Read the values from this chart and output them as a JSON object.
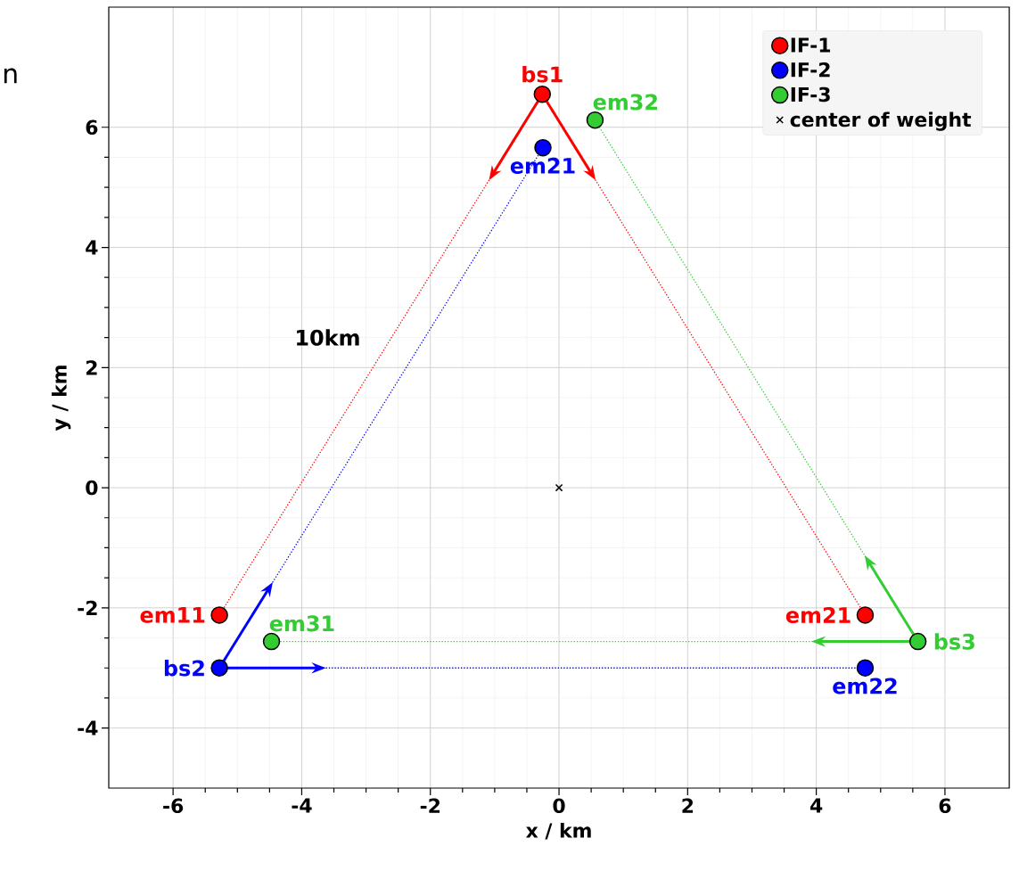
{
  "chart_data": {
    "type": "scatter",
    "xlabel": "x / km",
    "ylabel": "y / km",
    "xlim": [
      -7,
      7
    ],
    "ylim": [
      -5,
      8
    ],
    "xticks": [
      -6,
      -4,
      -2,
      0,
      2,
      4,
      6
    ],
    "yticks": [
      -4,
      -2,
      0,
      2,
      4,
      6
    ],
    "grid": true,
    "legend": "top right",
    "marker": "circle",
    "annotations": [
      "n",
      "10km"
    ],
    "series": [
      {
        "name": "IF-1",
        "color": "#ff0000",
        "x": [
          -5.28,
          -0.26,
          4.76
        ],
        "values": [
          -2.12,
          6.55,
          -2.12
        ],
        "value_labels": [
          "em11",
          "bs1",
          "em21"
        ],
        "line_style": "dotted"
      },
      {
        "name": "IF-2",
        "color": "#0000ff",
        "x": [
          -0.25,
          -5.28,
          4.76
        ],
        "values": [
          5.66,
          -3.0,
          -3.0
        ],
        "value_labels": [
          "em21",
          "bs2",
          "em22"
        ],
        "line_style": "dotted"
      },
      {
        "name": "IF-3",
        "color": "#33cc33",
        "x": [
          -4.47,
          5.58,
          0.56
        ],
        "values": [
          -2.56,
          -2.56,
          6.12
        ],
        "value_labels": [
          "em31",
          "bs3",
          "em32"
        ],
        "line_style": "dotted"
      },
      {
        "name": "center of weight",
        "color": "#000000",
        "marker": "cross",
        "x": [
          0
        ],
        "values": [
          0
        ]
      }
    ]
  }
}
